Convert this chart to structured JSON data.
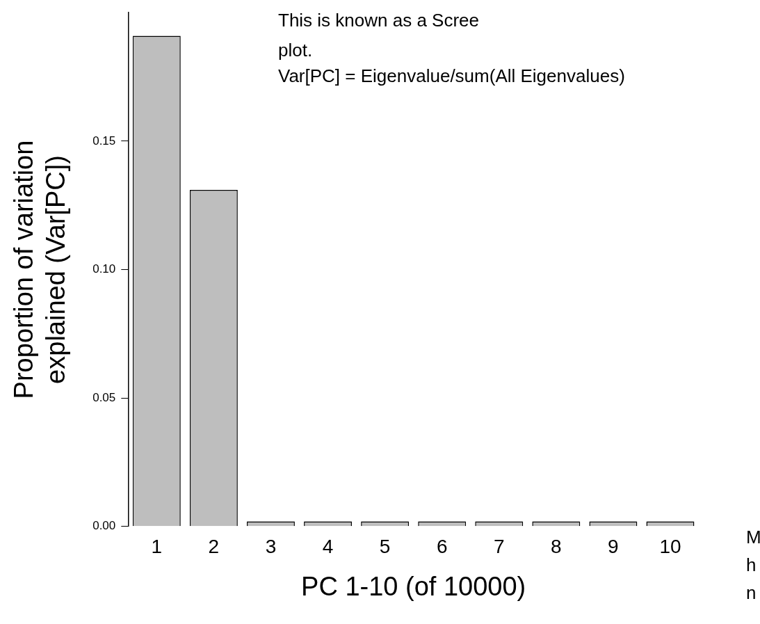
{
  "chart_data": {
    "type": "bar",
    "categories": [
      "1",
      "2",
      "3",
      "4",
      "5",
      "6",
      "7",
      "8",
      "9",
      "10"
    ],
    "values": [
      0.191,
      0.131,
      0.002,
      0.002,
      0.002,
      0.002,
      0.002,
      0.002,
      0.002,
      0.002
    ],
    "color": "#bebebe",
    "xlabel": "PC 1-10 (of 10000)",
    "ylabel": "Proportion of variation\nexplained (Var[PC])",
    "ylim": [
      0,
      0.2
    ],
    "yticks": [
      {
        "value": 0,
        "label": "0.00"
      },
      {
        "value": 0.05,
        "label": "0.05"
      },
      {
        "value": 0.1,
        "label": "0.10"
      },
      {
        "value": 0.15,
        "label": "0.15"
      }
    ],
    "grid": false,
    "legend": false,
    "annotations": [
      "This is known as a Scree\nplot.",
      "Var[PC] = Eigenvalue/sum(All Eigenvalues)",
      "M\nh\nn"
    ]
  }
}
